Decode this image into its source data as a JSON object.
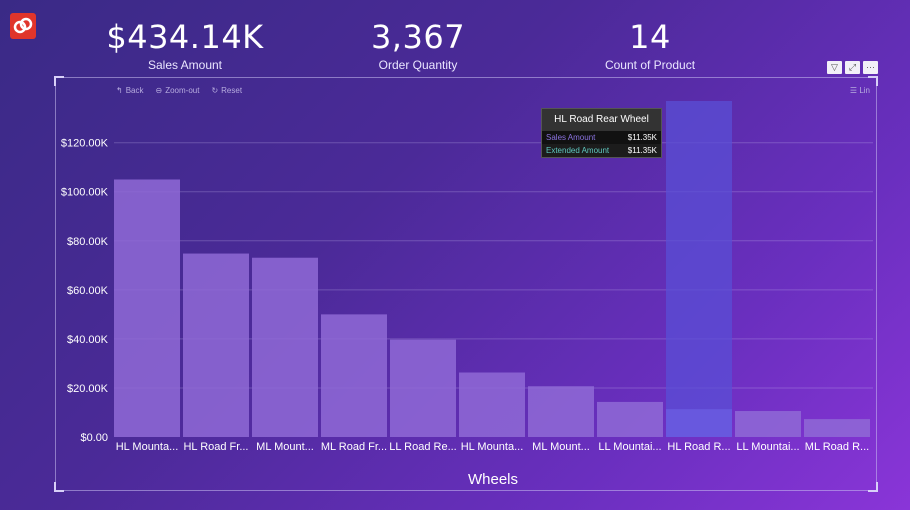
{
  "kpis": [
    {
      "value": "$434.14K",
      "label": "Sales Amount"
    },
    {
      "value": "3,367",
      "label": "Order Quantity"
    },
    {
      "value": "14",
      "label": "Count of Product"
    }
  ],
  "visual_header": {
    "back": "Back",
    "zoom_out": "Zoom-out",
    "reset": "Reset",
    "lin": "Lin"
  },
  "tooltip": {
    "title": "HL Road Rear Wheel",
    "rows": [
      {
        "name": "Sales Amount",
        "value": "$11.35K",
        "color": "#8b72e0"
      },
      {
        "name": "Extended Amount",
        "value": "$11.35K",
        "color": "#5fc9c0"
      }
    ]
  },
  "colors": {
    "bar": "#8f6ad6",
    "bar_highlight": "#5a4fd6"
  },
  "chart_data": {
    "type": "bar",
    "xlabel": "Wheels",
    "ylabel": "",
    "ylim": [
      0,
      137000
    ],
    "yticks": [
      "$0.00",
      "$20.00K",
      "$40.00K",
      "$60.00K",
      "$80.00K",
      "$100.00K",
      "$120.00K"
    ],
    "ytick_values": [
      0,
      20000,
      40000,
      60000,
      80000,
      100000,
      120000
    ],
    "categories": [
      "HL Mounta...",
      "HL Road Fr...",
      "ML Mount...",
      "ML Road Fr...",
      "LL Road Re...",
      "HL Mounta...",
      "ML Mount...",
      "LL Mountai...",
      "HL Road R...",
      "LL Mountai...",
      "ML Road R..."
    ],
    "values": [
      105000,
      74800,
      73100,
      50000,
      39700,
      26300,
      20700,
      14300,
      11350,
      10600,
      7300
    ],
    "highlight_index": 8,
    "grid": true
  }
}
